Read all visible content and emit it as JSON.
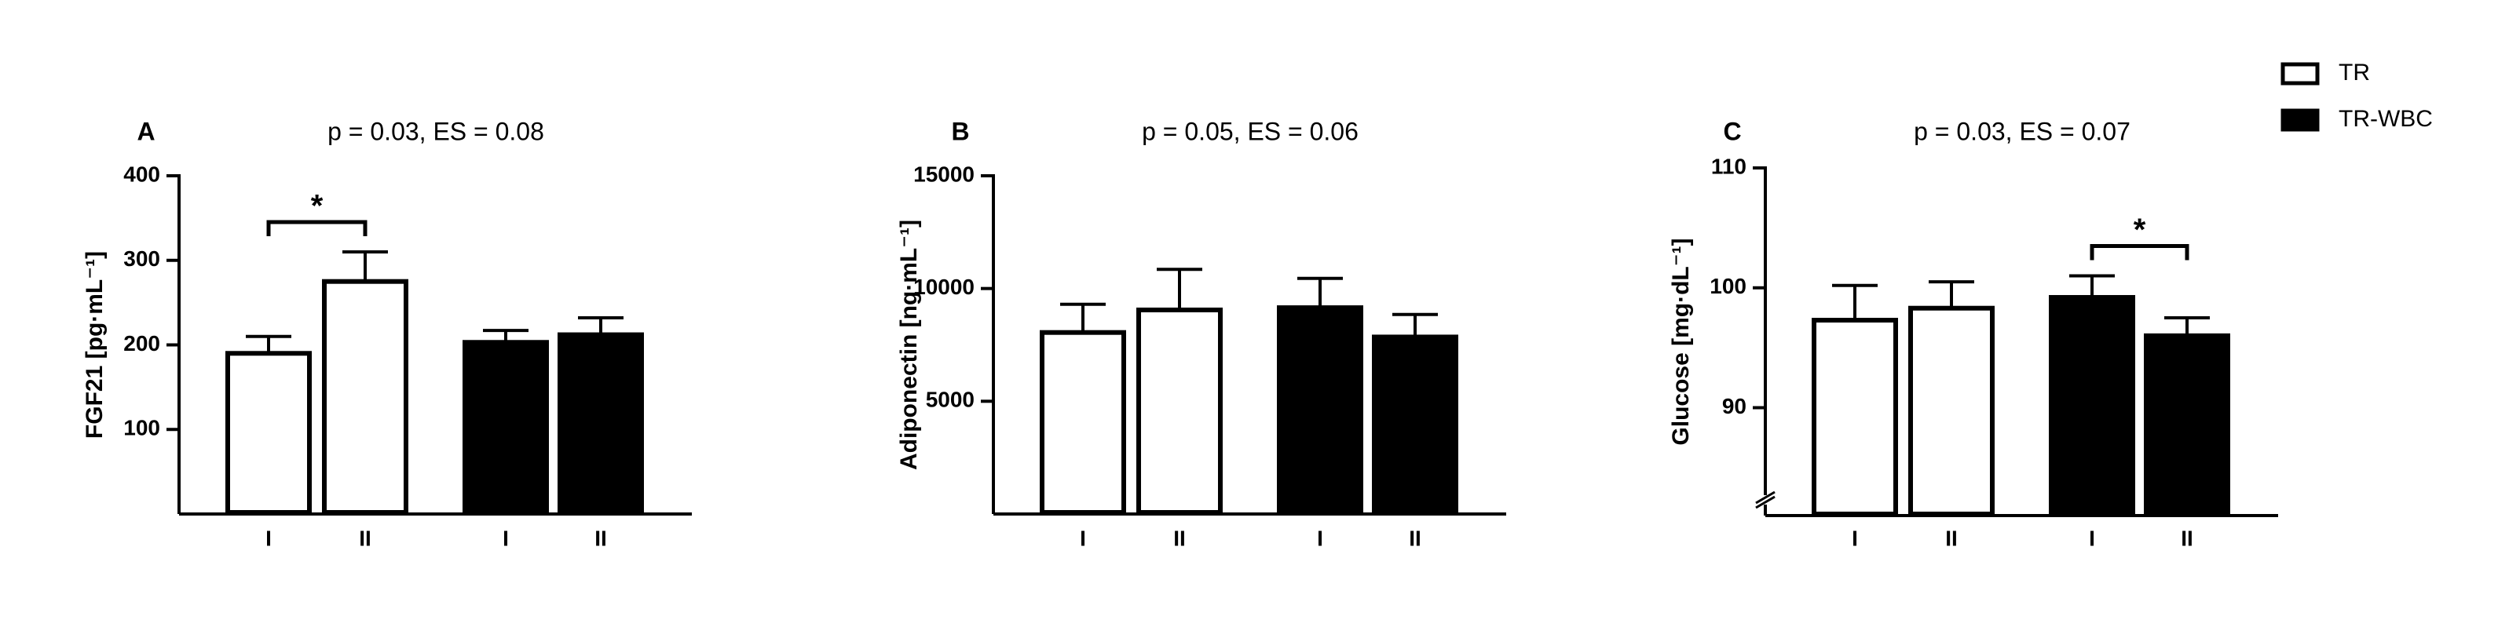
{
  "legend": {
    "position": "top-right",
    "entries": [
      {
        "name": "TR",
        "color": "#ffffff"
      },
      {
        "name": "TR-WBC",
        "color": "#000000"
      }
    ]
  },
  "chart_data": [
    {
      "type": "bar",
      "panel_label": "A",
      "title": "p = 0.03, ES = 0.08",
      "ylabel": "FGF21 [pg·mL⁻¹]",
      "categories": [
        "I",
        "II",
        "I",
        "II"
      ],
      "series": [
        {
          "name": "TR",
          "values": [
            190,
            275,
            null,
            null
          ],
          "errors": [
            20,
            35,
            null,
            null
          ]
        },
        {
          "name": "TR-WBC",
          "values": [
            null,
            null,
            203,
            212
          ],
          "errors": [
            null,
            null,
            14,
            20
          ]
        }
      ],
      "ylim": [
        0,
        400
      ],
      "yticks": [
        100,
        200,
        300,
        400
      ],
      "significance": [
        {
          "from": 0,
          "to": 1,
          "label": "*"
        }
      ]
    },
    {
      "type": "bar",
      "panel_label": "B",
      "title": "p = 0.05, ES = 0.06",
      "ylabel": "Adiponectin [ng·mL⁻¹]",
      "categories": [
        "I",
        "II",
        "I",
        "II"
      ],
      "series": [
        {
          "name": "TR",
          "values": [
            8050,
            9050,
            null,
            null
          ],
          "errors": [
            1250,
            1800,
            null,
            null
          ]
        },
        {
          "name": "TR-WBC",
          "values": [
            null,
            null,
            9150,
            7850
          ],
          "errors": [
            null,
            null,
            1300,
            1000
          ]
        }
      ],
      "ylim": [
        0,
        15000
      ],
      "yticks": [
        5000,
        10000,
        15000
      ]
    },
    {
      "type": "bar",
      "panel_label": "C",
      "title": "p = 0.03, ES = 0.07",
      "ylabel": "Glucose [mg·dL⁻¹]",
      "categories": [
        "I",
        "II",
        "I",
        "II"
      ],
      "series": [
        {
          "name": "TR",
          "values": [
            97.3,
            98.3,
            null,
            null
          ],
          "errors": [
            2.9,
            2.2,
            null,
            null
          ]
        },
        {
          "name": "TR-WBC",
          "values": [
            null,
            null,
            99.2,
            96
          ],
          "errors": [
            null,
            null,
            1.8,
            1.5
          ]
        }
      ],
      "ylim": [
        81,
        110
      ],
      "yticks": [
        90,
        100,
        110
      ],
      "axis_break": true,
      "significance": [
        {
          "from": 2,
          "to": 3,
          "label": "*"
        }
      ]
    }
  ]
}
